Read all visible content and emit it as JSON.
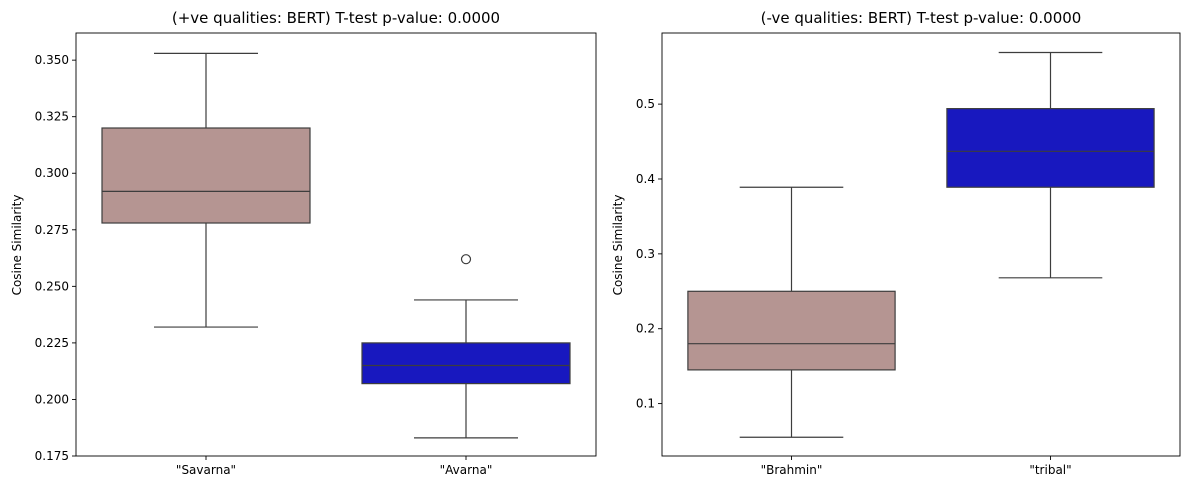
{
  "chart_data": [
    {
      "type": "box",
      "title": "(+ve qualities: BERT) T-test p-value: 0.0000",
      "xlabel": "",
      "ylabel": "Cosine Similarity",
      "ylim": [
        0.175,
        0.362
      ],
      "yticks": [
        "0.175",
        "0.200",
        "0.225",
        "0.250",
        "0.275",
        "0.300",
        "0.325",
        "0.350"
      ],
      "grid": false,
      "categories": [
        "\"Savarna\"",
        "\"Avarna\""
      ],
      "boxes": [
        {
          "category": "\"Savarna\"",
          "whisker_low": 0.232,
          "q1": 0.278,
          "median": 0.292,
          "q3": 0.32,
          "whisker_high": 0.353,
          "outliers": [],
          "color": "#b59592"
        },
        {
          "category": "\"Avarna\"",
          "whisker_low": 0.183,
          "q1": 0.207,
          "median": 0.215,
          "q3": 0.225,
          "whisker_high": 0.244,
          "outliers": [
            0.262
          ],
          "color": "#1818bf"
        }
      ]
    },
    {
      "type": "box",
      "title": "(-ve qualities: BERT) T-test p-value: 0.0000",
      "xlabel": "",
      "ylabel": "Cosine Similarity",
      "ylim": [
        0.03,
        0.595
      ],
      "yticks": [
        "0.1",
        "0.2",
        "0.3",
        "0.4",
        "0.5"
      ],
      "grid": false,
      "categories": [
        "\"Brahmin\"",
        "\"tribal\""
      ],
      "boxes": [
        {
          "category": "\"Brahmin\"",
          "whisker_low": 0.055,
          "q1": 0.145,
          "median": 0.18,
          "q3": 0.25,
          "whisker_high": 0.389,
          "outliers": [],
          "color": "#b59592"
        },
        {
          "category": "\"tribal\"",
          "whisker_low": 0.268,
          "q1": 0.389,
          "median": 0.437,
          "q3": 0.494,
          "whisker_high": 0.569,
          "outliers": [],
          "color": "#1818bf"
        }
      ]
    }
  ]
}
